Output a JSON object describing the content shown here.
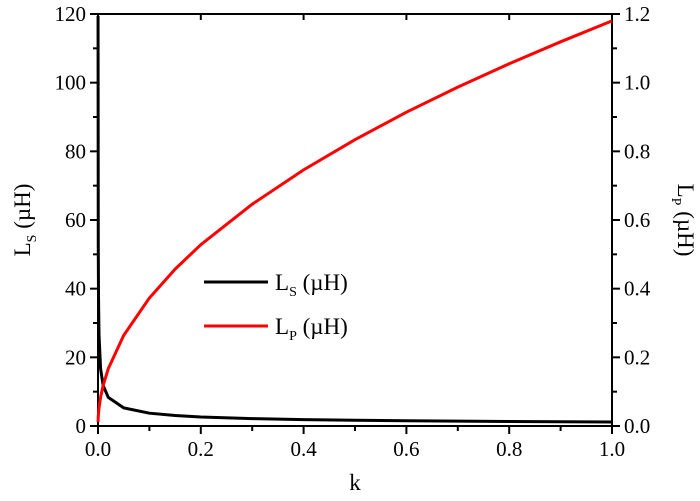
{
  "chart_data": {
    "type": "line",
    "title": "",
    "xlabel": "k",
    "ylabel": "L_S (µH)",
    "ylabel_right": "L_P (µH)",
    "xlim": [
      0.0,
      1.0
    ],
    "ylim": [
      0,
      120
    ],
    "ylim_right": [
      0.0,
      1.2
    ],
    "x_ticks": [
      "0.0",
      "0.2",
      "0.4",
      "0.6",
      "0.8",
      "1.0"
    ],
    "y_ticks": [
      "0",
      "20",
      "40",
      "60",
      "80",
      "100",
      "120"
    ],
    "y_ticks_right": [
      "0.0",
      "0.2",
      "0.4",
      "0.6",
      "0.8",
      "1.0",
      "1.2"
    ],
    "grid": false,
    "legend_position": "center-left",
    "x": [
      0.0001,
      0.0005,
      0.001,
      0.002,
      0.005,
      0.01,
      0.02,
      0.05,
      0.1,
      0.15,
      0.2,
      0.3,
      0.4,
      0.5,
      0.6,
      0.7,
      0.8,
      0.9,
      1.0
    ],
    "series": [
      {
        "name": "L_S (µH)",
        "axis": "left",
        "color": "#000000",
        "values": [
          118.0,
          52.8,
          37.3,
          26.4,
          16.7,
          11.8,
          8.34,
          5.28,
          3.73,
          3.05,
          2.64,
          2.15,
          1.87,
          1.67,
          1.52,
          1.41,
          1.32,
          1.24,
          1.18
        ]
      },
      {
        "name": "L_P (µH)",
        "axis": "right",
        "color": "#ff0000",
        "values": [
          0.0118,
          0.0264,
          0.0373,
          0.0528,
          0.0834,
          0.118,
          0.167,
          0.264,
          0.373,
          0.457,
          0.528,
          0.646,
          0.746,
          0.834,
          0.914,
          0.987,
          1.055,
          1.119,
          1.18
        ]
      }
    ]
  },
  "labels": {
    "x_axis": "k",
    "y_left_main": "L",
    "y_left_sub": "S",
    "y_left_unit": " (µH)",
    "y_right_main": "L",
    "y_right_sub": "P",
    "y_right_unit": " (µH)",
    "legend_ls_main": "L",
    "legend_ls_sub": "S",
    "legend_ls_unit": " (µH)",
    "legend_lp_main": "L",
    "legend_lp_sub": "P",
    "legend_lp_unit": " (µH)"
  }
}
